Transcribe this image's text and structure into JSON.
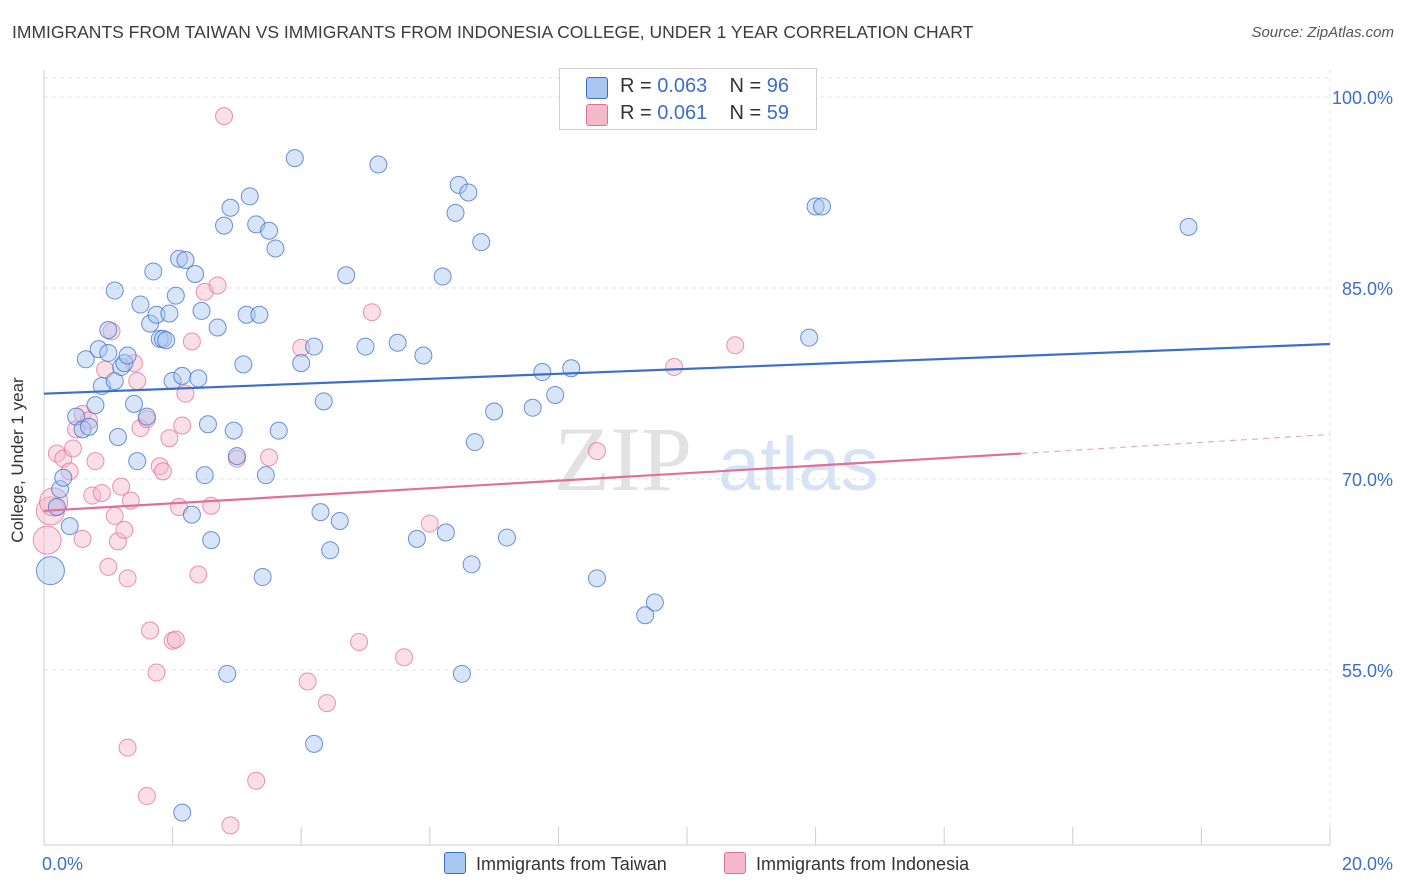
{
  "title": "IMMIGRANTS FROM TAIWAN VS IMMIGRANTS FROM INDONESIA COLLEGE, UNDER 1 YEAR CORRELATION CHART",
  "source": "Source: ZipAtlas.com",
  "legend": {
    "taiwan": {
      "r_label": "R =",
      "r_value": "0.063",
      "n_label": "N =",
      "n_value": "96"
    },
    "indonesia": {
      "r_label": "R =",
      "r_value": "0.061",
      "n_label": "N =",
      "n_value": "59"
    }
  },
  "watermark": {
    "zip": "ZIP",
    "atlas": "atlas"
  },
  "colors": {
    "taiwan": "#3b6fc9",
    "taiwan_fill": "#a9c6f0",
    "indonesia": "#e07098",
    "indonesia_fill": "#f5b9cc"
  },
  "chart_data": {
    "type": "scatter",
    "xlabel": "",
    "ylabel": "College, Under 1 year",
    "xlim": [
      0,
      20
    ],
    "ylim": [
      40,
      102
    ],
    "x_tick_labels": [
      {
        "v": 0,
        "label": "0.0%"
      },
      {
        "v": 20,
        "label": "20.0%"
      }
    ],
    "y_tick_labels": [
      {
        "v": 100,
        "label": "100.0%"
      },
      {
        "v": 85,
        "label": "85.0%"
      },
      {
        "v": 70,
        "label": "70.0%"
      },
      {
        "v": 55,
        "label": "55.0%"
      }
    ],
    "grid": true,
    "legend_position": "top-center",
    "series": [
      {
        "name": "Immigrants from Taiwan",
        "trend": {
          "x": [
            0,
            20
          ],
          "y": [
            76.7,
            80.6
          ]
        },
        "points": [
          [
            0.1,
            62.8
          ],
          [
            0.2,
            67.8
          ],
          [
            0.25,
            69.2
          ],
          [
            0.3,
            70.1
          ],
          [
            0.4,
            66.3
          ],
          [
            0.5,
            74.9
          ],
          [
            0.6,
            73.9
          ],
          [
            0.7,
            74.1
          ],
          [
            0.65,
            79.4
          ],
          [
            0.8,
            75.8
          ],
          [
            0.9,
            77.3
          ],
          [
            0.85,
            80.2
          ],
          [
            1.0,
            81.7
          ],
          [
            1.0,
            79.9
          ],
          [
            1.1,
            84.8
          ],
          [
            1.1,
            77.7
          ],
          [
            1.15,
            73.3
          ],
          [
            1.2,
            78.8
          ],
          [
            1.25,
            79.1
          ],
          [
            1.3,
            79.7
          ],
          [
            1.4,
            75.9
          ],
          [
            1.45,
            71.4
          ],
          [
            1.5,
            83.7
          ],
          [
            1.6,
            74.9
          ],
          [
            1.65,
            82.2
          ],
          [
            1.7,
            86.3
          ],
          [
            1.75,
            82.9
          ],
          [
            1.8,
            81.0
          ],
          [
            1.85,
            81.0
          ],
          [
            1.9,
            80.9
          ],
          [
            1.95,
            83.0
          ],
          [
            2.0,
            77.7
          ],
          [
            2.05,
            84.4
          ],
          [
            2.1,
            87.3
          ],
          [
            2.15,
            78.1
          ],
          [
            2.2,
            87.2
          ],
          [
            2.3,
            67.2
          ],
          [
            2.35,
            86.1
          ],
          [
            2.4,
            77.9
          ],
          [
            2.45,
            83.2
          ],
          [
            2.5,
            70.3
          ],
          [
            2.55,
            74.3
          ],
          [
            2.6,
            65.2
          ],
          [
            2.7,
            81.9
          ],
          [
            2.8,
            89.9
          ],
          [
            2.85,
            54.7
          ],
          [
            2.9,
            91.3
          ],
          [
            2.95,
            73.8
          ],
          [
            3.0,
            71.8
          ],
          [
            3.1,
            79.0
          ],
          [
            3.15,
            82.9
          ],
          [
            3.2,
            92.2
          ],
          [
            3.3,
            90.0
          ],
          [
            3.35,
            82.9
          ],
          [
            3.4,
            62.3
          ],
          [
            3.45,
            70.3
          ],
          [
            3.5,
            89.5
          ],
          [
            3.6,
            88.1
          ],
          [
            3.65,
            73.8
          ],
          [
            3.9,
            95.2
          ],
          [
            4.0,
            79.1
          ],
          [
            4.2,
            80.4
          ],
          [
            4.3,
            67.4
          ],
          [
            4.35,
            76.1
          ],
          [
            4.45,
            64.4
          ],
          [
            4.6,
            66.7
          ],
          [
            4.7,
            86.0
          ],
          [
            5.0,
            80.4
          ],
          [
            5.2,
            94.7
          ],
          [
            5.5,
            80.7
          ],
          [
            5.8,
            65.3
          ],
          [
            5.9,
            79.7
          ],
          [
            6.2,
            85.9
          ],
          [
            6.25,
            65.8
          ],
          [
            6.4,
            90.9
          ],
          [
            6.45,
            93.1
          ],
          [
            6.5,
            54.7
          ],
          [
            6.6,
            92.5
          ],
          [
            6.65,
            63.3
          ],
          [
            6.7,
            72.9
          ],
          [
            6.8,
            88.6
          ],
          [
            7.0,
            75.3
          ],
          [
            7.2,
            65.4
          ],
          [
            7.6,
            75.6
          ],
          [
            7.75,
            78.4
          ],
          [
            7.95,
            76.6
          ],
          [
            8.2,
            78.7
          ],
          [
            8.6,
            62.2
          ],
          [
            9.35,
            59.3
          ],
          [
            9.5,
            60.3
          ],
          [
            11.9,
            81.1
          ],
          [
            12.0,
            91.4
          ],
          [
            12.1,
            91.4
          ],
          [
            17.8,
            89.8
          ],
          [
            4.2,
            49.2
          ],
          [
            2.15,
            43.8
          ]
        ]
      },
      {
        "name": "Immigrants from Indonesia",
        "trend": {
          "x": [
            0,
            15.2
          ],
          "y": [
            67.5,
            72.0
          ]
        },
        "trend_extension": {
          "x": [
            15.2,
            20
          ],
          "y": [
            72.0,
            73.5
          ]
        },
        "points": [
          [
            0.05,
            65.2
          ],
          [
            0.1,
            67.5
          ],
          [
            0.15,
            68.2
          ],
          [
            0.2,
            72.0
          ],
          [
            0.3,
            71.6
          ],
          [
            0.4,
            70.6
          ],
          [
            0.45,
            72.4
          ],
          [
            0.5,
            73.9
          ],
          [
            0.6,
            75.1
          ],
          [
            0.7,
            74.6
          ],
          [
            0.8,
            71.4
          ],
          [
            0.6,
            65.3
          ],
          [
            0.75,
            68.7
          ],
          [
            0.9,
            68.9
          ],
          [
            0.95,
            78.6
          ],
          [
            1.0,
            63.1
          ],
          [
            1.05,
            81.6
          ],
          [
            1.1,
            67.1
          ],
          [
            1.15,
            65.1
          ],
          [
            1.2,
            69.4
          ],
          [
            1.25,
            66.0
          ],
          [
            1.3,
            62.2
          ],
          [
            1.35,
            68.3
          ],
          [
            1.4,
            79.1
          ],
          [
            1.45,
            77.7
          ],
          [
            1.5,
            74.0
          ],
          [
            1.6,
            74.7
          ],
          [
            1.65,
            58.1
          ],
          [
            1.75,
            54.8
          ],
          [
            1.8,
            71.0
          ],
          [
            1.85,
            70.6
          ],
          [
            1.95,
            73.2
          ],
          [
            2.0,
            57.3
          ],
          [
            2.05,
            57.4
          ],
          [
            2.1,
            67.8
          ],
          [
            2.15,
            74.2
          ],
          [
            2.2,
            76.7
          ],
          [
            2.3,
            80.8
          ],
          [
            2.4,
            62.5
          ],
          [
            2.5,
            84.7
          ],
          [
            2.6,
            67.9
          ],
          [
            2.7,
            85.2
          ],
          [
            2.8,
            98.5
          ],
          [
            2.9,
            42.8
          ],
          [
            3.0,
            71.6
          ],
          [
            3.3,
            46.3
          ],
          [
            3.5,
            71.7
          ],
          [
            4.0,
            80.3
          ],
          [
            4.1,
            54.1
          ],
          [
            4.4,
            52.4
          ],
          [
            4.9,
            57.2
          ],
          [
            5.1,
            83.1
          ],
          [
            5.6,
            56.0
          ],
          [
            6.0,
            66.5
          ],
          [
            8.6,
            72.2
          ],
          [
            9.8,
            78.8
          ],
          [
            10.75,
            80.5
          ],
          [
            1.3,
            48.9
          ],
          [
            1.6,
            45.1
          ]
        ]
      }
    ]
  }
}
